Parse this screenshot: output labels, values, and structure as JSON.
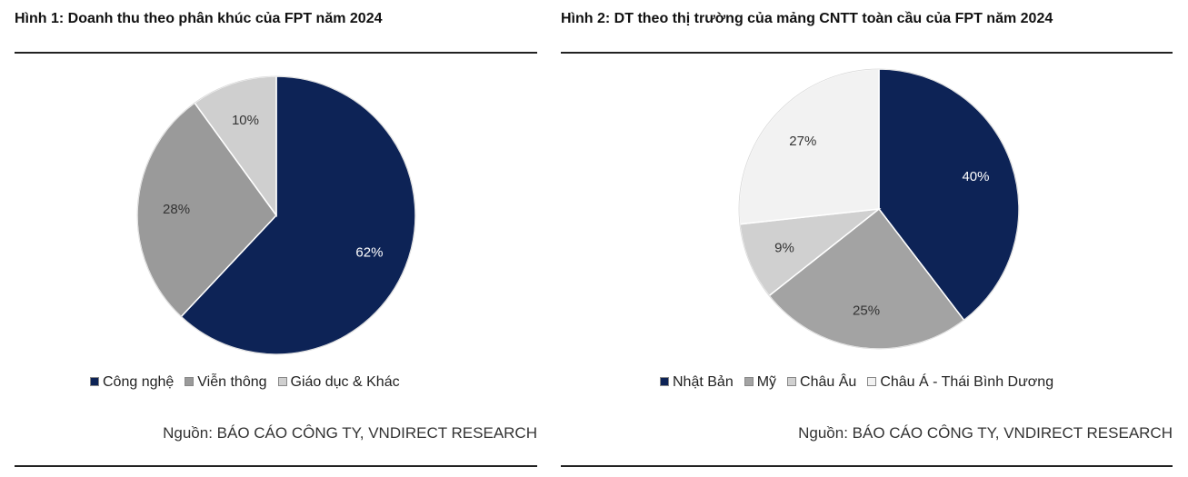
{
  "chart_data": [
    {
      "type": "pie",
      "title": "Hình 1: Doanh thu theo phân khúc của FPT năm 2024",
      "labels": [
        "Công nghệ",
        "Viễn thông",
        "Giáo dục & Khác"
      ],
      "values": [
        62,
        28,
        10
      ],
      "value_labels": [
        "62%",
        "28%",
        "10%"
      ],
      "colors": [
        "#0d2356",
        "#9a9a9a",
        "#cfcfcf"
      ],
      "label_colors": [
        "#ffffff",
        "#333333",
        "#333333"
      ],
      "start": "12 o'clock",
      "direction": "clockwise",
      "legend_position": "bottom",
      "source": "Nguồn: BÁO CÁO CÔNG TY, VNDIRECT RESEARCH"
    },
    {
      "type": "pie",
      "title": "Hình 2: DT theo thị trường của mảng CNTT toàn cầu của FPT năm 2024",
      "labels": [
        "Nhật Bản",
        "Mỹ",
        "Châu Âu",
        "Châu Á - Thái Bình Dương"
      ],
      "values": [
        40,
        25,
        9,
        27
      ],
      "value_labels": [
        "40%",
        "25%",
        "9%",
        "27%"
      ],
      "colors": [
        "#0d2356",
        "#a3a3a3",
        "#d0d0d0",
        "#f2f2f2"
      ],
      "label_colors": [
        "#ffffff",
        "#333333",
        "#333333",
        "#333333"
      ],
      "start": "12 o'clock",
      "direction": "clockwise",
      "legend_position": "bottom",
      "source": "Nguồn: BÁO CÁO CÔNG TY, VNDIRECT RESEARCH"
    }
  ]
}
